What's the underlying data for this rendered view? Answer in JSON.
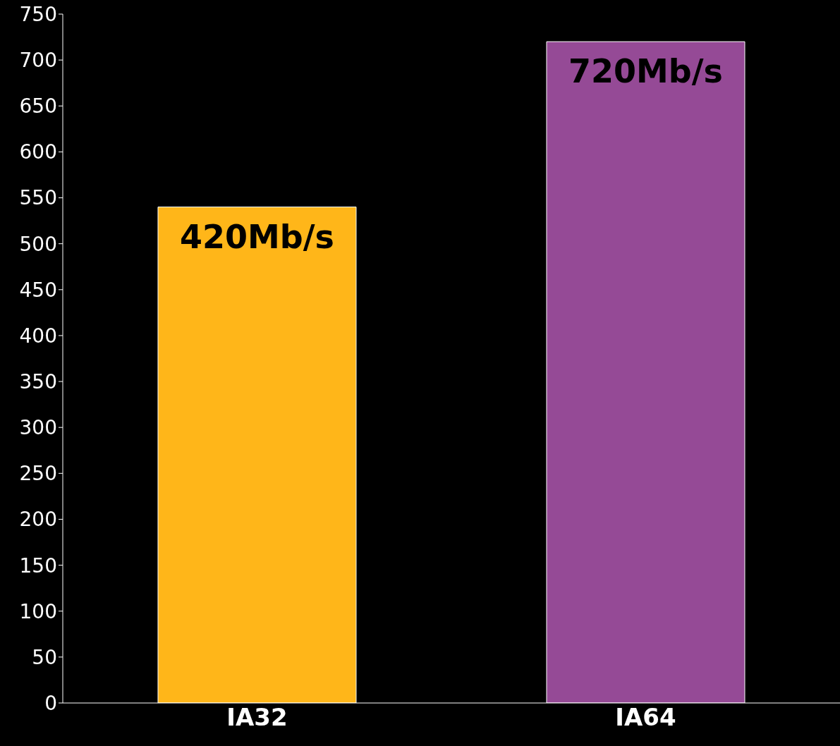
{
  "chart_data": {
    "type": "bar",
    "categories": [
      "IA32",
      "IA64"
    ],
    "values": [
      540,
      720
    ],
    "colors": [
      "#ffb619",
      "#954a96"
    ],
    "ylim": [
      0,
      750
    ],
    "yticks": [
      0,
      50,
      100,
      150,
      200,
      250,
      300,
      350,
      400,
      450,
      500,
      550,
      600,
      650,
      700,
      750
    ],
    "grid": false,
    "legend": false,
    "annotations": [
      {
        "text": "420Mb/s",
        "x": "IA32",
        "y": 540
      },
      {
        "text": "720Mb/s",
        "x": "IA64",
        "y": 720
      }
    ]
  }
}
